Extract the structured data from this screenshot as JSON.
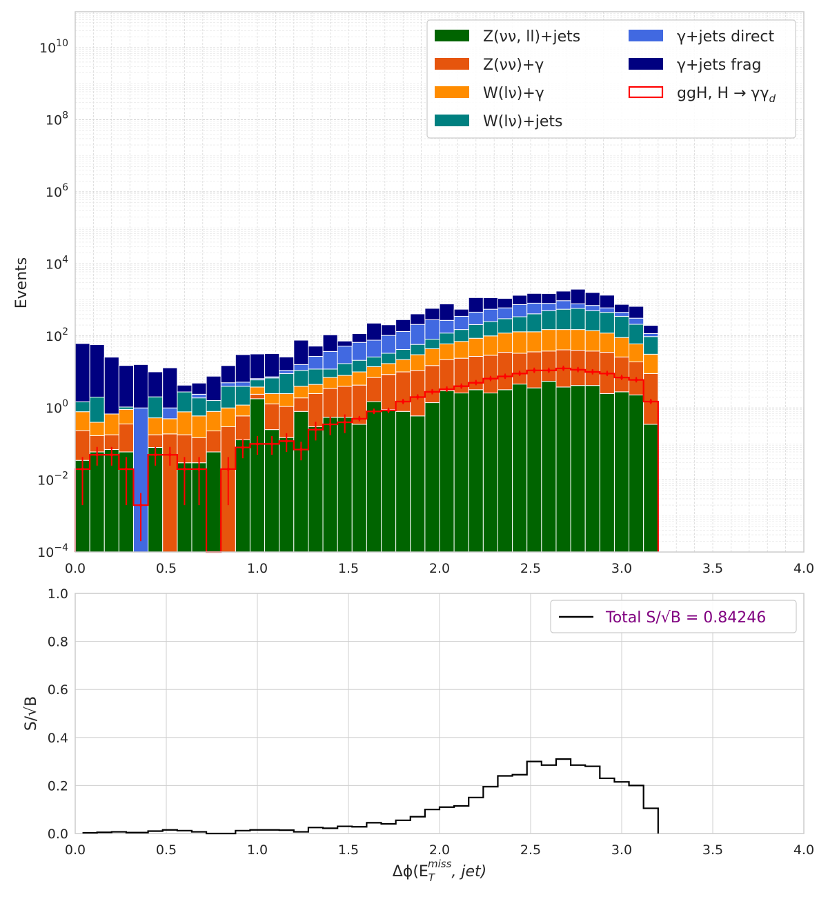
{
  "chart_data": [
    {
      "type": "bar",
      "stacked": true,
      "ylabel": "Events",
      "yscale": "log",
      "ylim": [
        0.0001,
        100000000000
      ],
      "xlim": [
        0,
        4
      ],
      "x_ticks": [
        "0.0",
        "0.5",
        "1.0",
        "1.5",
        "2.0",
        "2.5",
        "3.0",
        "3.5",
        "4.0"
      ],
      "y_ticks": [
        {
          "exp": "−4"
        },
        {
          "exp": "−2"
        },
        {
          "exp": "0"
        },
        {
          "exp": "2"
        },
        {
          "exp": "4"
        },
        {
          "exp": "6"
        },
        {
          "exp": "8"
        },
        {
          "exp": "10"
        }
      ],
      "grid": true,
      "legend_position": "top-right",
      "bin_edges": [
        0.0,
        0.08,
        0.16,
        0.24,
        0.32,
        0.4,
        0.48,
        0.56,
        0.64,
        0.72,
        0.8,
        0.88,
        0.96,
        1.04,
        1.12,
        1.2,
        1.28,
        1.36,
        1.44,
        1.52,
        1.6,
        1.68,
        1.76,
        1.84,
        1.92,
        2.0,
        2.08,
        2.16,
        2.24,
        2.32,
        2.4,
        2.48,
        2.56,
        2.64,
        2.72,
        2.8,
        2.88,
        2.96,
        3.04,
        3.12,
        3.2
      ],
      "series": [
        {
          "name": "Z(νν, ll)+jets",
          "color": "#006400",
          "values": [
            0.035,
            0.06,
            0.07,
            0.06,
            0.0001,
            0.08,
            0.0001,
            0.03,
            0.03,
            0.06,
            0.0001,
            0.13,
            1.8,
            0.25,
            0.15,
            0.8,
            0.3,
            0.55,
            0.55,
            0.35,
            1.5,
            0.9,
            0.8,
            0.6,
            1.4,
            3.0,
            2.6,
            3.2,
            2.6,
            3.2,
            4.6,
            3.6,
            5.5,
            3.8,
            4.2,
            4.2,
            2.5,
            2.8,
            2.3,
            0.35
          ]
        },
        {
          "name": "Z(νν)+γ",
          "color": "#e6550d",
          "values": [
            0.2,
            0.11,
            0.11,
            0.3,
            0.0,
            0.1,
            0.19,
            0.15,
            0.12,
            0.17,
            0.3,
            0.47,
            0.6,
            1.05,
            0.95,
            1.1,
            2.2,
            2.95,
            3.45,
            3.95,
            5.5,
            7.6,
            9.2,
            10.4,
            13.6,
            19.0,
            21.4,
            23.8,
            26.4,
            31.8,
            28.4,
            32.4,
            32.5,
            37.2,
            35.8,
            33.8,
            32.5,
            23.2,
            16.7,
            8.65
          ]
        },
        {
          "name": "W(lν)+γ",
          "color": "#ff8c00",
          "values": [
            0.55,
            0.23,
            0.5,
            0.55,
            0.0,
            0.35,
            0.31,
            0.6,
            0.45,
            0.57,
            0.7,
            0.6,
            1.4,
            1.2,
            1.4,
            2.1,
            2.0,
            3.5,
            4.0,
            5.7,
            7.0,
            8.5,
            12.0,
            19.0,
            29.0,
            38.0,
            46.0,
            59.0,
            71.0,
            85.0,
            97.0,
            94.0,
            112.0,
            109.0,
            110.0,
            102.0,
            85.0,
            64.0,
            41.0,
            22.0
          ]
        },
        {
          "name": "W(lν)+jets",
          "color": "#008080",
          "values": [
            0.7,
            1.6,
            0.0,
            0.15,
            0.0,
            1.5,
            0.0,
            2.0,
            1.3,
            0.8,
            3.0,
            2.8,
            2.2,
            4.3,
            6.5,
            7.0,
            7.5,
            5.0,
            9.0,
            11.0,
            12.0,
            16.0,
            20.0,
            28.0,
            37.0,
            60.0,
            80.0,
            120.0,
            150.0,
            180.0,
            210.0,
            280.0,
            350.0,
            400.0,
            430.0,
            360.0,
            330.0,
            260.0,
            150.0,
            65.0
          ]
        },
        {
          "name": "γ+jets direct",
          "color": "#4169e1",
          "values": [
            0.0,
            0.0,
            0.0,
            0.0,
            1.0,
            0.0,
            0.5,
            0.0,
            0.5,
            0.0,
            1.0,
            1.2,
            0.5,
            0.5,
            2.0,
            5.0,
            15.0,
            25.0,
            35.0,
            45.0,
            50.0,
            70.0,
            90.0,
            150.0,
            200.0,
            150.0,
            200.0,
            250.0,
            300.0,
            300.0,
            400.0,
            400.0,
            300.0,
            400.0,
            200.0,
            200.0,
            150.0,
            100.0,
            100.0,
            20.0
          ]
        },
        {
          "name": "γ+jets frag",
          "color": "#000080",
          "values": [
            60.0,
            55.0,
            25.0,
            14.0,
            15.0,
            8.0,
            12.0,
            1.5,
            2.5,
            6.0,
            10.0,
            25.0,
            25.0,
            25.0,
            15.0,
            60.0,
            25.0,
            70.0,
            20.0,
            50.0,
            150.0,
            100.0,
            150.0,
            200.0,
            300.0,
            500.0,
            200.0,
            700.0,
            600.0,
            500.0,
            600.0,
            700.0,
            700.0,
            800.0,
            1200.0,
            900.0,
            750.0,
            300.0,
            350.0,
            80.0
          ]
        }
      ],
      "signal": {
        "name": "ggH, H→γγ_d",
        "color": "#ff0000",
        "values": [
          0.02,
          0.05,
          0.05,
          0.02,
          0.002,
          0.05,
          0.05,
          0.02,
          0.02,
          0.0001,
          0.02,
          0.08,
          0.1,
          0.1,
          0.12,
          0.07,
          0.25,
          0.35,
          0.4,
          0.5,
          0.8,
          0.85,
          1.5,
          2.0,
          2.8,
          3.3,
          4.0,
          5.0,
          6.5,
          7.5,
          9.0,
          11.0,
          11.0,
          12.5,
          11.5,
          10.0,
          9.0,
          7.0,
          6.0,
          1.5
        ]
      },
      "legend_entries": [
        {
          "label": "Z(νν, ll)+jets",
          "color": "#006400",
          "kind": "filled"
        },
        {
          "label": "Z(νν)+γ",
          "color": "#e6550d",
          "kind": "filled"
        },
        {
          "label": "W(lν)+γ",
          "color": "#ff8c00",
          "kind": "filled"
        },
        {
          "label": "W(lν)+jets",
          "color": "#008080",
          "kind": "filled"
        },
        {
          "label": "γ+jets direct",
          "color": "#4169e1",
          "kind": "filled"
        },
        {
          "label": "γ+jets frag",
          "color": "#000080",
          "kind": "filled"
        },
        {
          "label": "ggH, H → γγ",
          "sub": "d",
          "color": "#ff0000",
          "kind": "outline"
        }
      ]
    },
    {
      "type": "line",
      "drawstyle": "steps",
      "ylabel": "S/√B",
      "xlabel_base": "Δϕ(E",
      "xlabel_sub": "T",
      "xlabel_sup": "miss",
      "xlabel_tail": ", jet)",
      "xlim": [
        0,
        4
      ],
      "ylim": [
        0,
        1
      ],
      "x_ticks": [
        "0.0",
        "0.5",
        "1.0",
        "1.5",
        "2.0",
        "2.5",
        "3.0",
        "3.5",
        "4.0"
      ],
      "y_ticks": [
        "0.0",
        "0.2",
        "0.4",
        "0.6",
        "0.8",
        "1.0"
      ],
      "grid": true,
      "legend_position": "top-right",
      "legend_label": "Total S/√B = 0.84246",
      "legend_text_color": "#800080",
      "line_color": "#000000",
      "bin_edges": [
        0.04,
        0.12,
        0.2,
        0.28,
        0.4,
        0.48,
        0.56,
        0.64,
        0.72,
        0.88,
        0.96,
        1.12,
        1.2,
        1.28,
        1.36,
        1.44,
        1.52,
        1.6,
        1.68,
        1.76,
        1.84,
        1.92,
        2.0,
        2.08,
        2.16,
        2.24,
        2.32,
        2.4,
        2.48,
        2.56,
        2.64,
        2.72,
        2.8,
        2.88,
        2.96,
        3.04,
        3.12,
        3.2
      ],
      "values": [
        0.003,
        0.005,
        0.007,
        0.004,
        0.01,
        0.015,
        0.012,
        0.007,
        0.0,
        0.012,
        0.015,
        0.014,
        0.007,
        0.025,
        0.022,
        0.03,
        0.028,
        0.045,
        0.04,
        0.055,
        0.07,
        0.1,
        0.11,
        0.115,
        0.15,
        0.195,
        0.24,
        0.245,
        0.3,
        0.285,
        0.31,
        0.285,
        0.28,
        0.23,
        0.215,
        0.2,
        0.105
      ]
    }
  ]
}
